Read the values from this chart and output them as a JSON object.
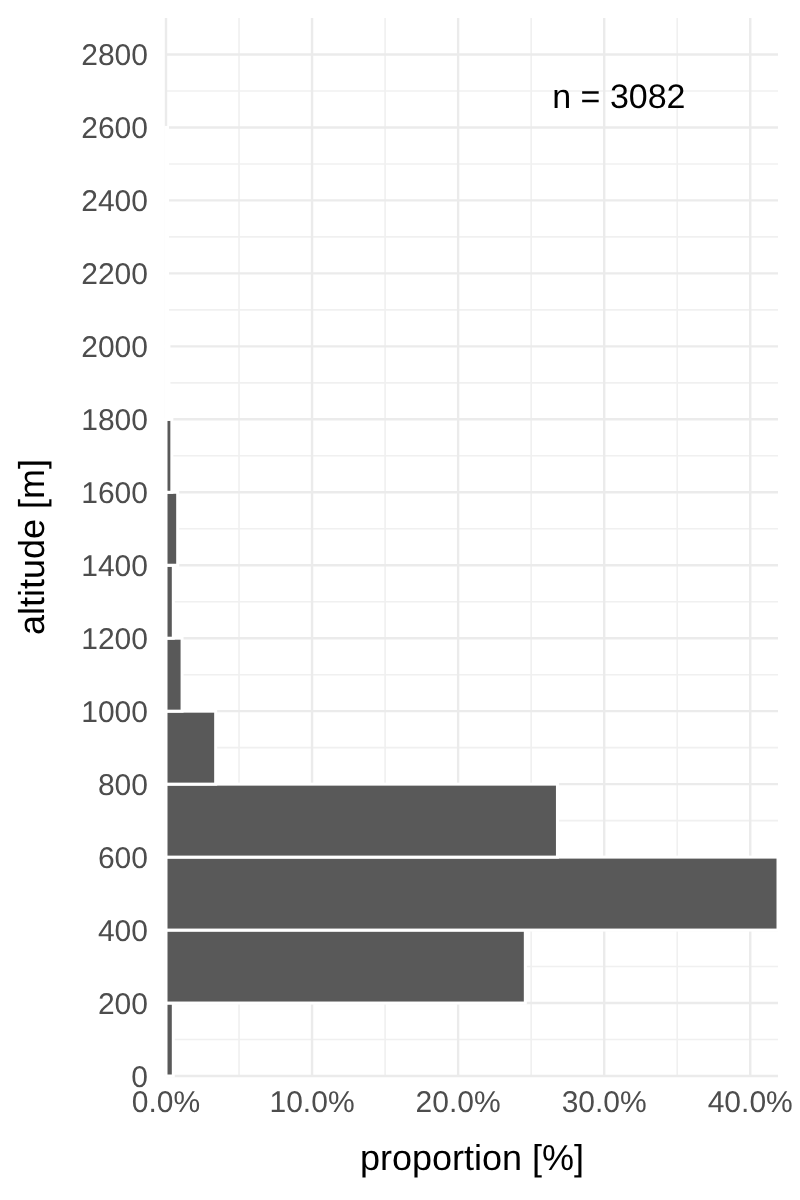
{
  "chart_data": {
    "type": "histogram",
    "orientation": "horizontal",
    "xlabel": "proportion [%]",
    "ylabel": "altitude [m]",
    "bins": [
      0,
      200,
      400,
      600,
      800,
      1000,
      1200,
      1400,
      1600,
      1800,
      2000,
      2200,
      2400,
      2600
    ],
    "values": [
      0.5,
      24.6,
      41.9,
      26.8,
      3.4,
      1.1,
      0.5,
      0.8,
      0.4,
      0.2,
      0.1,
      0.1,
      0.1
    ],
    "color": "#595959",
    "xlim": [
      0,
      41.9
    ],
    "xticks": [
      {
        "value": 0,
        "label": "0.0%"
      },
      {
        "value": 10,
        "label": "10.0%"
      },
      {
        "value": 20,
        "label": "20.0%"
      },
      {
        "value": 30,
        "label": "30.0%"
      },
      {
        "value": 40,
        "label": "40.0%"
      }
    ],
    "ylim": [
      0,
      2900
    ],
    "yticks": [
      0,
      200,
      400,
      600,
      800,
      1000,
      1200,
      1400,
      1600,
      1800,
      2000,
      2200,
      2400,
      2600,
      2800
    ],
    "grid": true,
    "annotations": [
      "n = 3082"
    ]
  }
}
